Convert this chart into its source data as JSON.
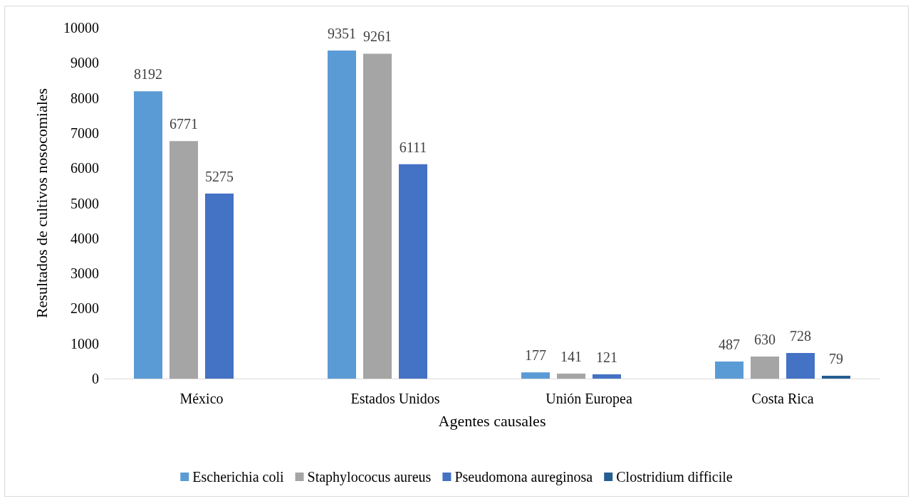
{
  "chart_data": {
    "type": "bar",
    "xlabel": "Agentes causales",
    "ylabel": "Resultados de cultivos nosocomiales",
    "categories": [
      "México",
      "Estados Unidos",
      "Unión Europea",
      "Costa Rica"
    ],
    "series": [
      {
        "name": "Escherichia coli",
        "color": "#5b9bd5",
        "values": [
          8192,
          9351,
          177,
          487
        ]
      },
      {
        "name": "Staphylococus aureus",
        "color": "#a5a5a5",
        "values": [
          6771,
          9261,
          141,
          630
        ]
      },
      {
        "name": "Pseudomona aureginosa",
        "color": "#4472c4",
        "values": [
          5275,
          6111,
          121,
          728
        ]
      },
      {
        "name": "Clostridium difficile",
        "color": "#255e91",
        "values": [
          null,
          null,
          null,
          79
        ]
      }
    ],
    "ylim": [
      0,
      10000
    ],
    "yticks": [
      0,
      1000,
      2000,
      3000,
      4000,
      5000,
      6000,
      7000,
      8000,
      9000,
      10000
    ],
    "grid": false,
    "legend": "bottom",
    "data_labels": true
  }
}
